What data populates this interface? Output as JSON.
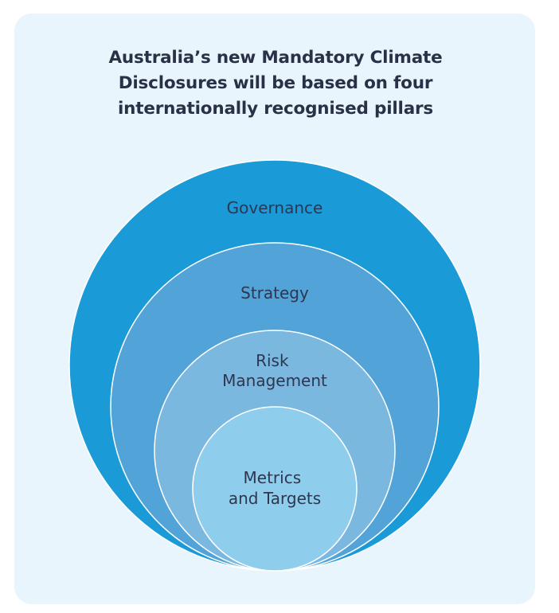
{
  "title": {
    "line1": "Australia’s new Mandatory Climate",
    "line2": "Disclosures will be based on four",
    "line3": "internationally recognised pillars"
  },
  "pillars": [
    {
      "label_lines": [
        "Governance"
      ],
      "color": "#1a9ad7"
    },
    {
      "label_lines": [
        "Strategy"
      ],
      "color": "#52a3d8"
    },
    {
      "label_lines": [
        "Risk",
        "Management"
      ],
      "color": "#7ab8e0"
    },
    {
      "label_lines": [
        "Metrics",
        "and Targets"
      ],
      "color": "#8fcdec"
    }
  ],
  "colors": {
    "card_background": "#e8f5fc",
    "title_text": "#2a3147",
    "label_text": "#2e3650",
    "ring_outline": "#ffffff"
  }
}
